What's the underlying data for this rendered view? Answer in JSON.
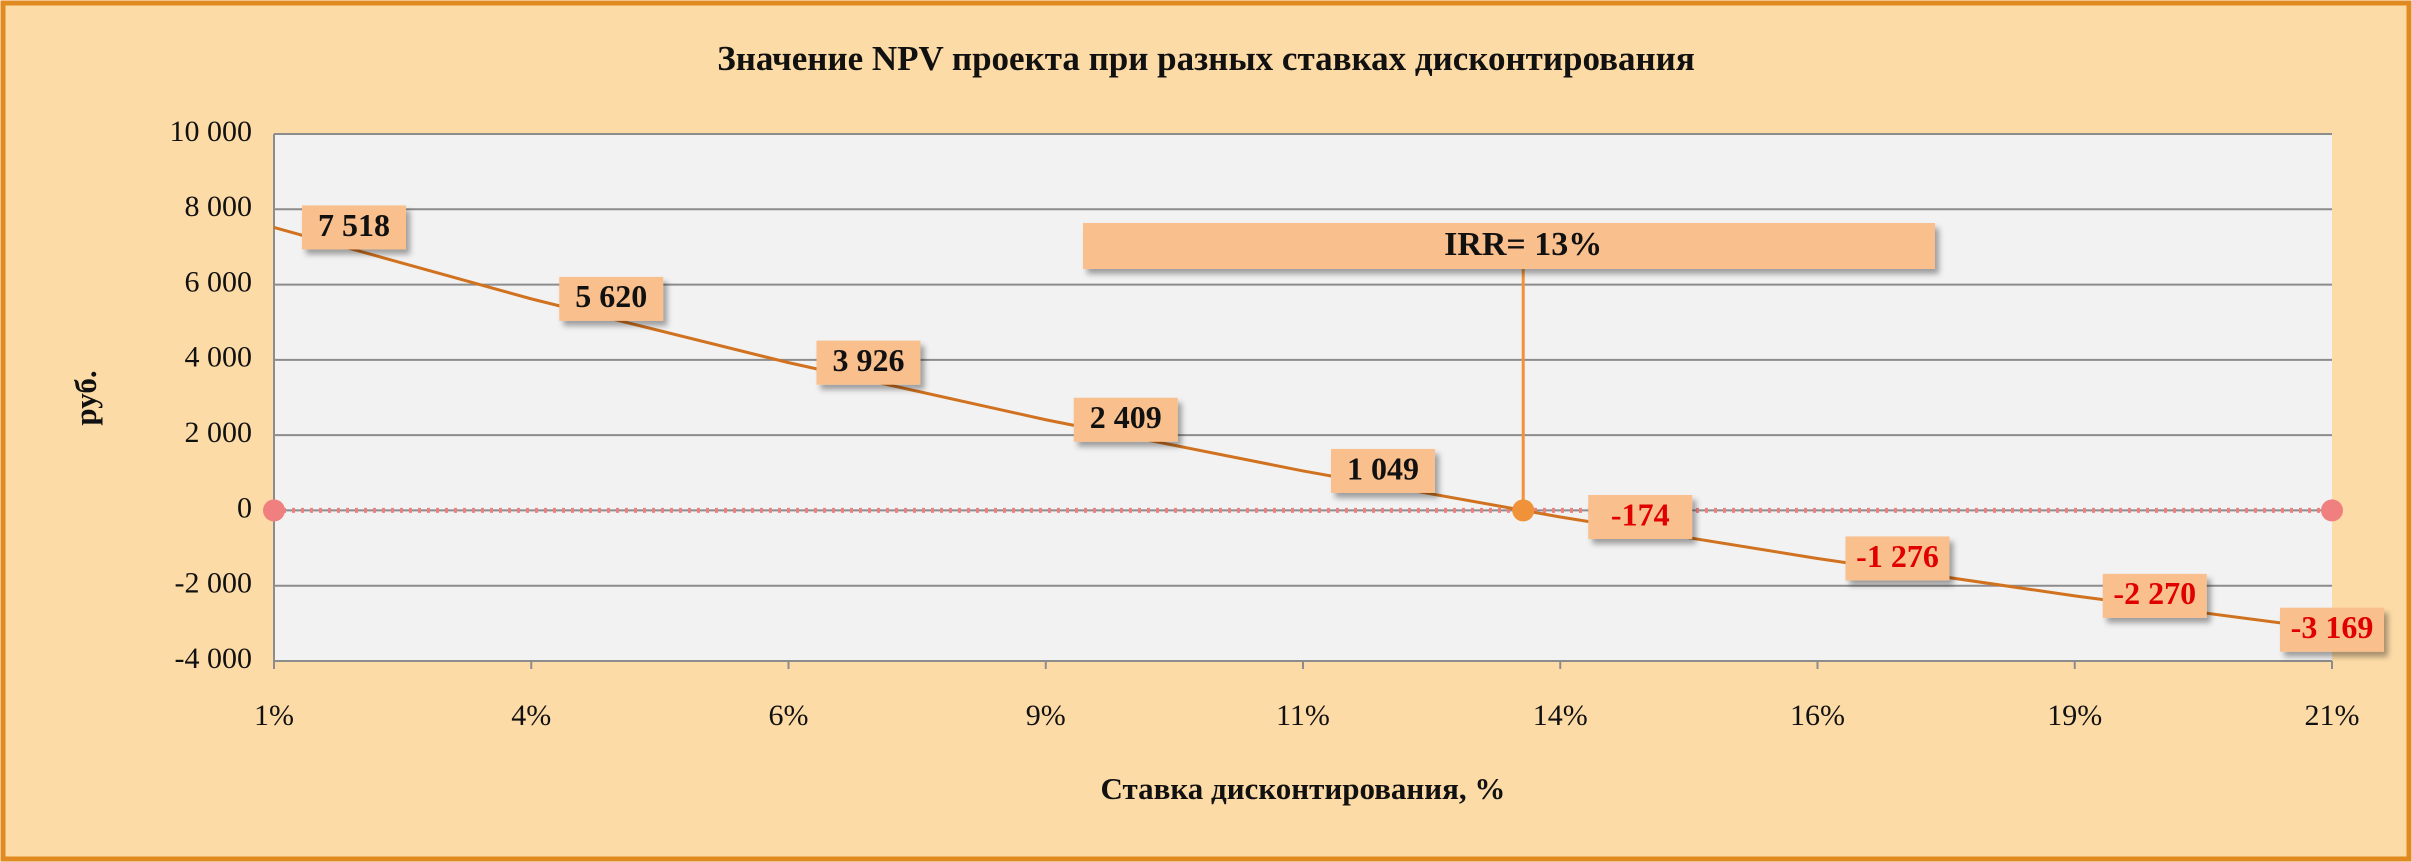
{
  "chart_data": {
    "type": "line",
    "title": "Значение NPV проекта при разных ставках дисконтирования",
    "xlabel": "Ставка дисконтирования, %",
    "ylabel": "руб.",
    "x": [
      1,
      3.5,
      6,
      8.5,
      11,
      13.5,
      16,
      18.5,
      21
    ],
    "series": [
      {
        "name": "NPV",
        "color": "#d0721f",
        "values": [
          7518,
          5620,
          3926,
          2409,
          1049,
          -174,
          -1276,
          -2270,
          -3169
        ],
        "value_labels": [
          "7 518",
          "5 620",
          "3 926",
          "2 409",
          "1 049",
          "-174",
          "-1 276",
          "-2 270",
          "-3 169"
        ]
      }
    ],
    "zero_line": {
      "x": [
        1,
        21
      ],
      "values": [
        0,
        0
      ],
      "color": "#f08080"
    },
    "irr": {
      "label": "IRR= 13%",
      "x": 13.14,
      "y": 0,
      "color": "#f0923a"
    },
    "xlim": [
      1,
      21
    ],
    "xticks": [
      {
        "value": 1,
        "label": "1%"
      },
      {
        "value": 3.5,
        "label": "4%"
      },
      {
        "value": 6,
        "label": "6%"
      },
      {
        "value": 8.5,
        "label": "9%"
      },
      {
        "value": 11,
        "label": "11%"
      },
      {
        "value": 13.5,
        "label": "14%"
      },
      {
        "value": 16,
        "label": "16%"
      },
      {
        "value": 18.5,
        "label": "19%"
      },
      {
        "value": 21,
        "label": "21%"
      }
    ],
    "ylim": [
      -4000,
      10000
    ],
    "yticks": [
      {
        "value": -4000,
        "label": "-4 000"
      },
      {
        "value": -2000,
        "label": "-2 000"
      },
      0,
      {
        "value": 2000,
        "label": "2 000"
      },
      {
        "value": 4000,
        "label": "4 000"
      },
      {
        "value": 6000,
        "label": "6 000"
      },
      {
        "value": 8000,
        "label": "8 000"
      },
      {
        "value": 10000,
        "label": "10 000"
      }
    ],
    "grid": true,
    "negative_label_color": "#e00000",
    "positive_label_color": "#111111"
  }
}
